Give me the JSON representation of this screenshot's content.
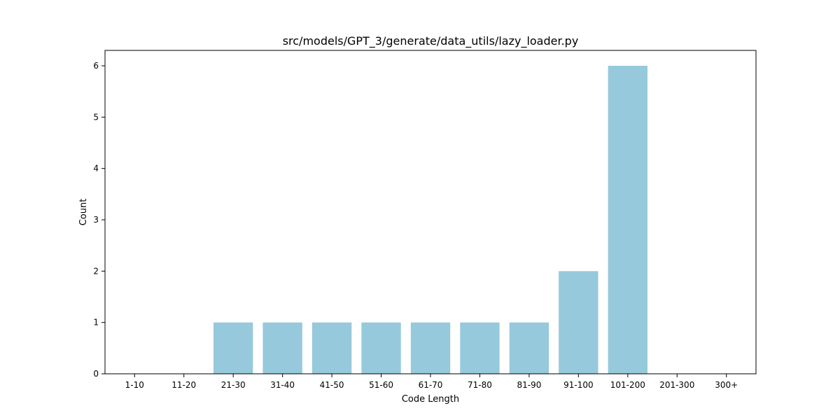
{
  "chart_data": {
    "type": "bar",
    "title": "src/models/GPT_3/generate/data_utils/lazy_loader.py",
    "xlabel": "Code Length",
    "ylabel": "Count",
    "categories": [
      "1-10",
      "11-20",
      "21-30",
      "31-40",
      "41-50",
      "51-60",
      "61-70",
      "71-80",
      "81-90",
      "91-100",
      "101-200",
      "201-300",
      "300+"
    ],
    "values": [
      0,
      0,
      1,
      1,
      1,
      1,
      1,
      1,
      1,
      2,
      6,
      0,
      0
    ],
    "ylim": [
      0,
      6.3
    ],
    "yticks": [
      0,
      1,
      2,
      3,
      4,
      5,
      6
    ],
    "bar_color": "#96c9dc",
    "grid": false,
    "legend": "none"
  }
}
